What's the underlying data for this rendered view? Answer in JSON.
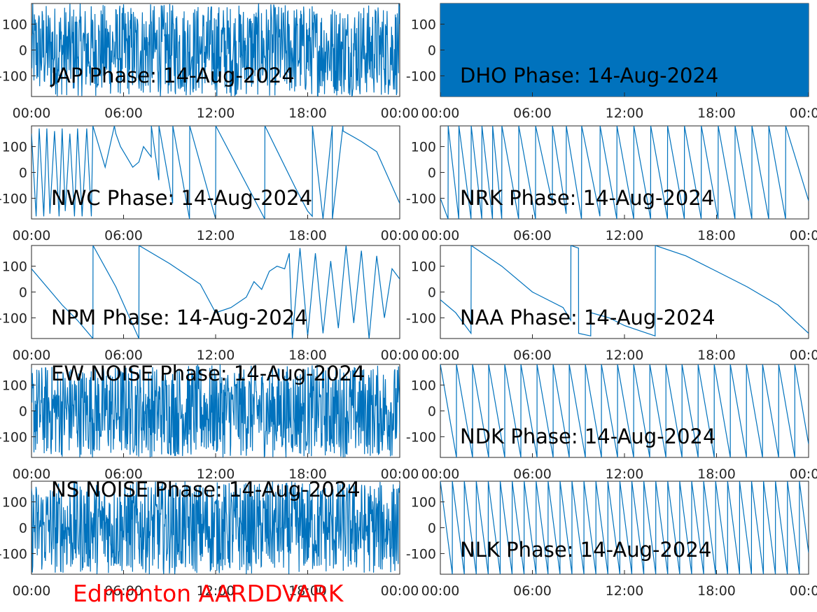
{
  "figure": {
    "footer": "Edmonton AARDDVARK",
    "footer_color": "#ff0000",
    "line_color": "#0072bd"
  },
  "chart_data": [
    {
      "type": "line",
      "title": "JAP Phase: 14-Aug-2024",
      "x_ticks": [
        "00:00",
        "06:00",
        "12:00",
        "18:00",
        "00:00"
      ],
      "y_ticks": [
        "100",
        "0",
        "-100"
      ],
      "ylim": [
        -180,
        180
      ],
      "xlim_hours": [
        0,
        24
      ],
      "pattern": "noise",
      "series": [
        {
          "x_hours": [],
          "y": []
        }
      ]
    },
    {
      "type": "line",
      "title": "DHO Phase: 14-Aug-2024",
      "x_ticks": [
        "00:00",
        "06:00",
        "12:00",
        "18:00",
        "00:00"
      ],
      "y_ticks": [
        "100",
        "0",
        "-100"
      ],
      "ylim": [
        -180,
        180
      ],
      "xlim_hours": [
        0,
        24
      ],
      "pattern": "dense",
      "series": [
        {
          "x_hours": [],
          "y": []
        }
      ]
    },
    {
      "type": "line",
      "title": "NWC Phase: 14-Aug-2024",
      "x_ticks": [
        "00:00",
        "06:00",
        "12:00",
        "18:00",
        "00:00"
      ],
      "y_ticks": [
        "100",
        "0",
        "-100"
      ],
      "ylim": [
        -180,
        180
      ],
      "xlim_hours": [
        0,
        24
      ],
      "series": [
        {
          "x_hours": [
            0.0,
            0.3,
            0.5,
            0.8,
            1.0,
            1.2,
            1.5,
            1.8,
            2.0,
            2.2,
            2.5,
            2.8,
            3.0,
            3.3,
            3.6,
            3.9,
            4.0,
            4.8,
            5.4,
            5.5,
            5.8,
            6.2,
            6.6,
            7.0,
            7.3,
            7.8,
            7.81,
            8.3,
            8.31,
            9.2,
            9.21,
            10.3,
            10.31,
            12.0,
            12.01,
            15.2,
            15.21,
            17.2,
            18.0,
            18.3,
            18.31,
            19.0,
            19.6,
            19.61,
            20.3,
            20.31,
            21.5,
            22.5,
            24.0
          ],
          "y": [
            150,
            -170,
            170,
            -170,
            170,
            -160,
            160,
            -170,
            170,
            -150,
            150,
            -170,
            170,
            -170,
            170,
            -170,
            180,
            20,
            180,
            150,
            100,
            60,
            20,
            40,
            100,
            60,
            180,
            -30,
            180,
            -120,
            180,
            -180,
            180,
            -180,
            180,
            -180,
            180,
            -60,
            -150,
            -170,
            180,
            -180,
            180,
            -180,
            180,
            160,
            120,
            80,
            -120
          ]
        }
      ]
    },
    {
      "type": "line",
      "title": "NRK Phase: 14-Aug-2024",
      "x_ticks": [
        "00:00",
        "06:00",
        "12:00",
        "18:00",
        "00:00"
      ],
      "y_ticks": [
        "100",
        "0",
        "-100"
      ],
      "ylim": [
        -180,
        180
      ],
      "xlim_hours": [
        0,
        24
      ],
      "series": [
        {
          "x_hours": [
            0.0,
            0.5,
            0.51,
            1.2,
            1.21,
            2.0,
            2.01,
            2.7,
            2.71,
            3.4,
            3.41,
            4.0,
            4.01,
            5.1,
            5.11,
            6.2,
            6.21,
            7.3,
            7.31,
            8.2,
            8.21,
            9.2,
            9.21,
            10.4,
            10.41,
            11.5,
            11.51,
            12.6,
            12.61,
            13.7,
            13.71,
            14.8,
            14.81,
            15.9,
            15.91,
            17.0,
            17.01,
            18.1,
            18.11,
            19.2,
            19.21,
            20.3,
            20.31,
            21.4,
            21.41,
            22.5,
            22.51,
            24.0
          ],
          "y": [
            -100,
            -180,
            180,
            -180,
            180,
            -180,
            180,
            -180,
            180,
            -180,
            180,
            -180,
            180,
            -180,
            180,
            -180,
            180,
            -120,
            180,
            -160,
            180,
            -180,
            180,
            -170,
            180,
            -180,
            180,
            -180,
            180,
            -180,
            180,
            -180,
            180,
            -180,
            180,
            -180,
            180,
            -180,
            180,
            -180,
            180,
            -180,
            180,
            -180,
            180,
            -180,
            180,
            -110
          ]
        }
      ]
    },
    {
      "type": "line",
      "title": "NPM Phase: 14-Aug-2024",
      "x_ticks": [
        "00:00",
        "06:00",
        "12:00",
        "18:00",
        "00:00"
      ],
      "y_ticks": [
        "100",
        "0",
        "-100"
      ],
      "ylim": [
        -180,
        180
      ],
      "xlim_hours": [
        0,
        24
      ],
      "series": [
        {
          "x_hours": [
            0.0,
            1.0,
            2.0,
            3.0,
            4.0,
            4.01,
            5.5,
            7.0,
            7.01,
            9.0,
            11.0,
            12.0,
            13.0,
            14.0,
            14.5,
            15.0,
            15.5,
            16.0,
            16.5,
            16.8,
            17.0,
            17.5,
            18.0,
            18.5,
            19.0,
            19.5,
            20.0,
            20.5,
            21.0,
            21.5,
            22.0,
            22.5,
            23.0,
            23.5,
            24.0
          ],
          "y": [
            90,
            20,
            -50,
            -110,
            -180,
            180,
            20,
            -180,
            180,
            110,
            30,
            -80,
            -60,
            -20,
            40,
            10,
            80,
            100,
            90,
            150,
            -180,
            170,
            -170,
            150,
            -160,
            120,
            -140,
            180,
            -120,
            160,
            -180,
            140,
            -100,
            90,
            50
          ]
        }
      ]
    },
    {
      "type": "line",
      "title": "NAA Phase: 14-Aug-2024",
      "x_ticks": [
        "00:00",
        "06:00",
        "12:00",
        "18:00",
        "00:00"
      ],
      "y_ticks": [
        "100",
        "0",
        "-100"
      ],
      "ylim": [
        -180,
        180
      ],
      "xlim_hours": [
        0,
        24
      ],
      "series": [
        {
          "x_hours": [
            0.0,
            1.0,
            2.0,
            2.01,
            4.0,
            6.0,
            8.0,
            8.5,
            8.51,
            9.0,
            9.01,
            9.8,
            9.81,
            11.0,
            12.0,
            13.0,
            14.0,
            14.01,
            16.0,
            18.0,
            20.0,
            22.0,
            24.0
          ],
          "y": [
            -30,
            -80,
            -160,
            180,
            100,
            0,
            -60,
            -110,
            180,
            170,
            -160,
            -170,
            -80,
            -100,
            -130,
            -150,
            -170,
            180,
            140,
            80,
            20,
            -50,
            -160
          ]
        }
      ]
    },
    {
      "type": "line",
      "title": "EW NOISE Phase: 14-Aug-2024",
      "x_ticks": [
        "00:00",
        "06:00",
        "12:00",
        "18:00",
        "00:00"
      ],
      "y_ticks": [
        "100",
        "0",
        "-100"
      ],
      "ylim": [
        -180,
        180
      ],
      "xlim_hours": [
        0,
        24
      ],
      "pattern": "noise",
      "series": [
        {
          "x_hours": [],
          "y": []
        }
      ]
    },
    {
      "type": "line",
      "title": "NDK Phase: 14-Aug-2024",
      "x_ticks": [
        "00:00",
        "06:00",
        "12:00",
        "18:00",
        "00:00"
      ],
      "y_ticks": [
        "100",
        "0",
        "-100"
      ],
      "ylim": [
        -180,
        180
      ],
      "xlim_hours": [
        0,
        24
      ],
      "pattern": "sawtooth",
      "period_hours": 1.05,
      "series": [
        {
          "x_hours": [],
          "y": []
        }
      ]
    },
    {
      "type": "line",
      "title": "NS NOISE Phase: 14-Aug-2024",
      "x_ticks": [
        "00:00",
        "06:00",
        "12:00",
        "18:00",
        "00:00"
      ],
      "y_ticks": [
        "100",
        "0",
        "-100"
      ],
      "ylim": [
        -180,
        180
      ],
      "xlim_hours": [
        0,
        24
      ],
      "pattern": "noise",
      "series": [
        {
          "x_hours": [],
          "y": []
        }
      ]
    },
    {
      "type": "line",
      "title": "NLK Phase: 14-Aug-2024",
      "x_ticks": [
        "00:00",
        "06:00",
        "12:00",
        "18:00",
        "00:00"
      ],
      "y_ticks": [
        "100",
        "0",
        "-100"
      ],
      "ylim": [
        -180,
        180
      ],
      "xlim_hours": [
        0,
        24
      ],
      "pattern": "sawtooth",
      "period_hours": 0.78,
      "series": [
        {
          "x_hours": [],
          "y": []
        }
      ]
    }
  ]
}
